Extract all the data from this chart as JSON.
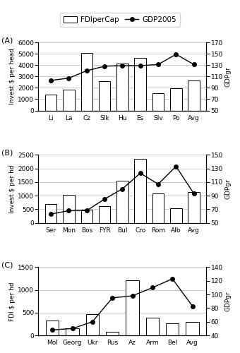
{
  "legend_labels": [
    "FDIperCap",
    "GDP2005"
  ],
  "A": {
    "label": "(A)",
    "categories": [
      "Li",
      "La",
      "Cz",
      "Slk",
      "Hu",
      "Es",
      "Slv",
      "Po",
      "Avg"
    ],
    "fdi": [
      1400,
      1850,
      5050,
      2550,
      4150,
      4650,
      1550,
      1950,
      2650
    ],
    "gdp": [
      103,
      107,
      120,
      128,
      129,
      129,
      131,
      149,
      131
    ],
    "ylabel_left": "Invest $ per head",
    "ylabel_right": "GDPgr",
    "ylim_left": [
      0,
      6000
    ],
    "ylim_right": [
      50,
      170
    ],
    "yticks_left": [
      0,
      1000,
      2000,
      3000,
      4000,
      5000,
      6000
    ],
    "yticks_right": [
      50,
      70,
      90,
      110,
      130,
      150,
      170
    ]
  },
  "B": {
    "label": "(B)",
    "categories": [
      "Ser",
      "Mon",
      "Bos",
      "FYR",
      "Bul",
      "Cro",
      "Rom",
      "Alb",
      "Avg"
    ],
    "fdi": [
      700,
      1040,
      490,
      620,
      1560,
      2360,
      1090,
      530,
      1130
    ],
    "gdp": [
      63,
      68,
      68,
      85,
      100,
      123,
      107,
      133,
      93
    ],
    "ylabel_left": "Invest $ per hd",
    "ylabel_right": "GDPgr",
    "ylim_left": [
      0,
      2500
    ],
    "ylim_right": [
      50,
      150
    ],
    "yticks_left": [
      0,
      500,
      1000,
      1500,
      2000,
      2500
    ],
    "yticks_right": [
      50,
      70,
      90,
      110,
      130,
      150
    ]
  },
  "C": {
    "label": "(C)",
    "categories": [
      "Mol",
      "Georg",
      "Ukr",
      "Rus",
      "Az",
      "Arm",
      "Bel",
      "Avg"
    ],
    "fdi": [
      320,
      150,
      470,
      80,
      1220,
      390,
      260,
      290
    ],
    "gdp": [
      48,
      50,
      60,
      95,
      98,
      110,
      123,
      83
    ],
    "ylabel_left": "FDI $ per hd",
    "ylabel_right": "GDPgr",
    "ylim_left": [
      0,
      1500
    ],
    "ylim_right": [
      40,
      140
    ],
    "yticks_left": [
      0,
      500,
      1000,
      1500
    ],
    "yticks_right": [
      40,
      60,
      80,
      100,
      120,
      140
    ]
  },
  "bar_color": "#ffffff",
  "bar_edgecolor": "#000000",
  "line_color": "#000000",
  "marker": "o",
  "marker_facecolor": "#000000",
  "marker_size": 4,
  "linewidth": 1.0,
  "fontsize_tick": 6.5,
  "fontsize_label": 6.5,
  "fontsize_legend": 7.5,
  "fontsize_panel": 8,
  "grid_color": "#bbbbbb",
  "grid_linewidth": 0.5
}
